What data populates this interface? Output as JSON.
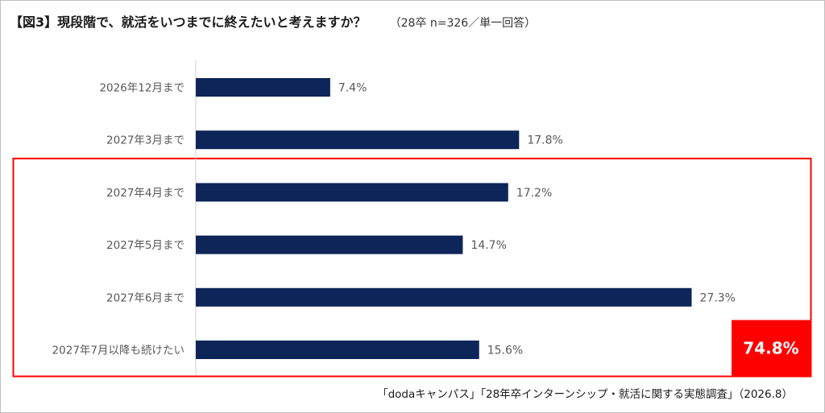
{
  "header": {
    "title": "【図3】現段階で、就活をいつまでに終えたいと考えますか？",
    "subtitle": "（28卒 n=326／単一回答）"
  },
  "chart_data": {
    "type": "bar",
    "orientation": "horizontal",
    "categories": [
      "2026年12月まで",
      "2027年3月まで",
      "2027年4月まで",
      "2027年5月まで",
      "2027年6月まで",
      "2027年7月以降も続けたい"
    ],
    "values": [
      7.4,
      17.8,
      17.2,
      14.7,
      27.3,
      15.6
    ],
    "value_labels": [
      "7.4%",
      "17.8%",
      "17.2%",
      "14.7%",
      "27.3%",
      "15.6%"
    ],
    "unit": "%",
    "xlim": [
      0,
      30
    ],
    "grid": false,
    "bar_color": "#0d2559",
    "highlight": {
      "categories": [
        "2027年4月まで",
        "2027年5月まで",
        "2027年6月まで",
        "2027年7月以降も続けたい"
      ],
      "total_label": "74.8%",
      "color": "#ff0000"
    }
  },
  "footer": {
    "source": "「dodaキャンパス」「28年卒インターンシップ・就活に関する実態調査」（2026.8）"
  }
}
